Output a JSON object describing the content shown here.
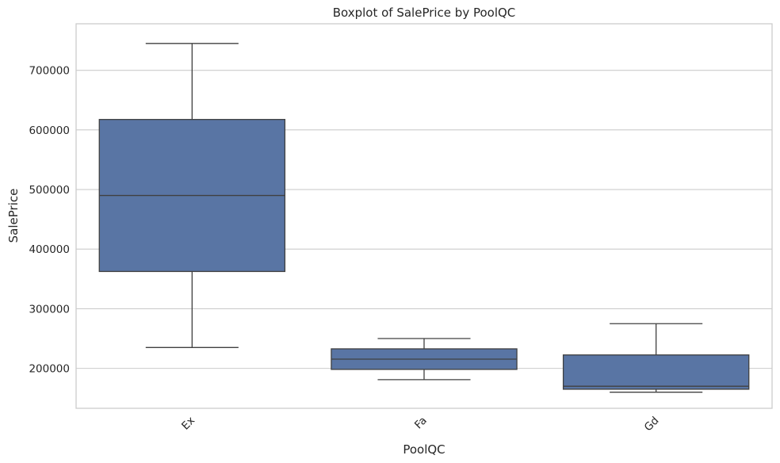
{
  "chart_data": {
    "type": "box",
    "title": "Boxplot of SalePrice by PoolQC",
    "xlabel": "PoolQC",
    "ylabel": "SalePrice",
    "ylim": [
      133000,
      778000
    ],
    "yticks": [
      200000,
      300000,
      400000,
      500000,
      600000,
      700000
    ],
    "ytick_labels": [
      "200000",
      "300000",
      "400000",
      "500000",
      "600000",
      "700000"
    ],
    "grid": "horizontal",
    "box_color": "#5975a4",
    "line_color": "#404040",
    "categories": [
      "Ex",
      "Fa",
      "Gd"
    ],
    "boxes": [
      {
        "category": "Ex",
        "whisker_low": 235000,
        "q1": 362500,
        "median": 490000,
        "q3": 617500,
        "whisker_high": 745000
      },
      {
        "category": "Fa",
        "whisker_low": 181000,
        "q1": 198250,
        "median": 215500,
        "q3": 232750,
        "whisker_high": 250000
      },
      {
        "category": "Gd",
        "whisker_low": 160000,
        "q1": 165000,
        "median": 170000,
        "q3": 222500,
        "whisker_high": 274970
      }
    ]
  }
}
